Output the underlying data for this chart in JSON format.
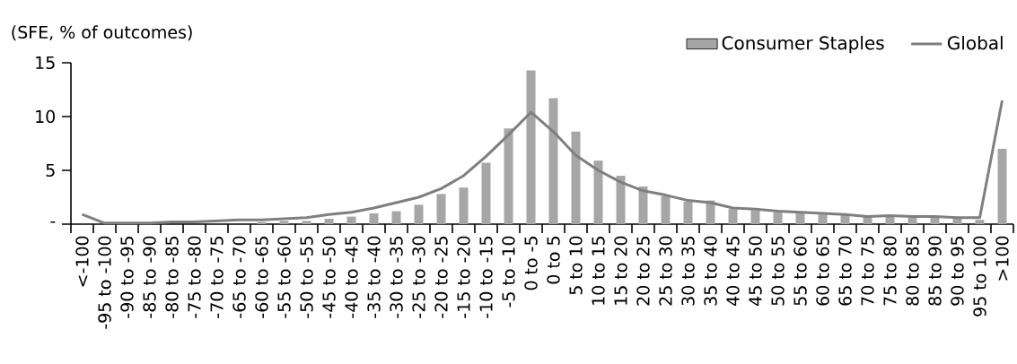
{
  "chart_data": {
    "type": "bar",
    "ylabel": "(SFE, % of outcomes)",
    "categories": [
      "<-100",
      "-95 to -100",
      "-90 to -95",
      "-85 to -90",
      "-80 to -85",
      "-75 to -80",
      "-70 to -75",
      "-65 to -70",
      "-60 to -65",
      "-55 to -60",
      "-50 to -55",
      "-45 to -50",
      "-40 to -45",
      "-35 to -40",
      "-30 to -35",
      "-25 to -30",
      "-20 to -25",
      "-15 to -20",
      "-10 to -15",
      "-5 to -10",
      "0 to -5",
      "0 to 5",
      "5 to 10",
      "10 to 15",
      "15 to 20",
      "20 to 25",
      "25 to 30",
      "30 to 35",
      "35 to 40",
      "40 to 45",
      "45 to 50",
      "50 to 55",
      "55 to 60",
      "60 to 65",
      "65 to 70",
      "70 to 75",
      "75 to 80",
      "80 to 85",
      "85 to 90",
      "90 to 95",
      "95 to 100",
      ">100"
    ],
    "series": [
      {
        "name": "Consumer Staples",
        "color": "#a6a6a6",
        "values": [
          0,
          0,
          0,
          0,
          0,
          null,
          null,
          null,
          0.2,
          0.3,
          0.3,
          0.5,
          0.7,
          1.0,
          1.2,
          1.8,
          2.8,
          3.4,
          5.7,
          8.9,
          14.3,
          11.7,
          8.6,
          5.9,
          4.5,
          3.5,
          2.6,
          2.1,
          2.2,
          1.4,
          1.3,
          1.1,
          1.0,
          0.9,
          0.9,
          0.7,
          0.7,
          0.6,
          0.6,
          0.5,
          0.4,
          7.0
        ]
      },
      {
        "name": "Global",
        "type": "line",
        "color": "#7f7f7f",
        "values": [
          0.9,
          0.1,
          0.1,
          0.1,
          0.2,
          0.2,
          0.3,
          0.4,
          0.4,
          0.5,
          0.6,
          0.9,
          1.1,
          1.5,
          2.0,
          2.5,
          3.3,
          4.5,
          6.3,
          8.3,
          10.4,
          8.6,
          6.4,
          5.0,
          3.9,
          3.1,
          2.7,
          2.2,
          2.0,
          1.5,
          1.4,
          1.2,
          1.1,
          1.0,
          0.9,
          0.7,
          0.8,
          0.7,
          0.7,
          0.6,
          0.6,
          11.5
        ]
      }
    ],
    "ylim": [
      0,
      15
    ],
    "yticks": [
      {
        "value": 0,
        "label": "-"
      },
      5,
      10,
      15
    ],
    "legend": "top right",
    "grid": false,
    "marker": "none",
    "line_style": "solid"
  }
}
